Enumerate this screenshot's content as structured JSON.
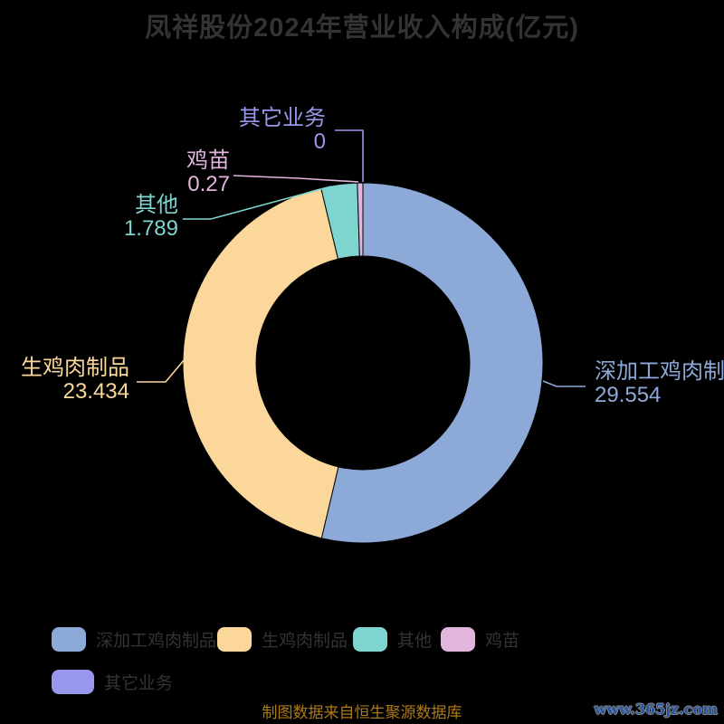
{
  "title": "凤祥股份2024年营业收入构成(亿元)",
  "chart_data": {
    "type": "pie",
    "subtype": "donut",
    "title": "凤祥股份2024年营业收入构成(亿元)",
    "unit": "亿元",
    "series": [
      {
        "name": "深加工鸡肉制品",
        "value": 29.554,
        "value_label": "29.554",
        "color": "#8da9d8"
      },
      {
        "name": "生鸡肉制品",
        "value": 23.434,
        "value_label": "23.434",
        "color": "#fbd79b"
      },
      {
        "name": "其他",
        "value": 1.789,
        "value_label": "1.789",
        "color": "#7ed5cf"
      },
      {
        "name": "鸡苗",
        "value": 0.27,
        "value_label": "0.27",
        "color": "#e2b5dc"
      },
      {
        "name": "其它业务",
        "value": 0,
        "value_label": "0",
        "color": "#9797eb"
      }
    ],
    "start_angle": "12-oclock",
    "direction": "clockwise",
    "inner_radius_ratio": 0.59,
    "legend_position": "bottom",
    "background_color": "#000000",
    "title_color": "#333333"
  },
  "legend": {
    "row1": [
      "深加工鸡肉制品",
      "生鸡肉制品",
      "其他",
      "鸡苗"
    ],
    "row2": [
      "其它业务"
    ]
  },
  "footer": {
    "source_note": "制图数据来自恒生聚源数据库",
    "watermark": "www.365jz.com"
  }
}
